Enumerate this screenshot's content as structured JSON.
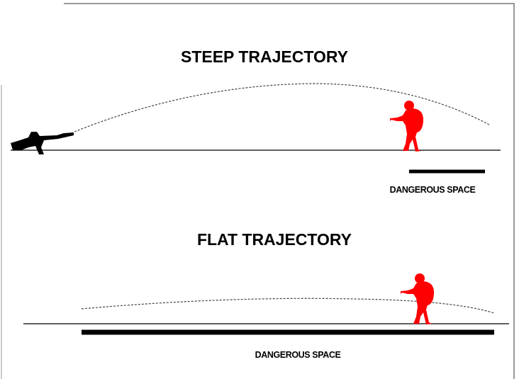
{
  "steep": {
    "title": "STEEP TRAJECTORY",
    "label": "DANGEROUS SPACE"
  },
  "flat": {
    "title": "FLAT TRAJECTORY",
    "label": "DANGEROUS SPACE"
  }
}
